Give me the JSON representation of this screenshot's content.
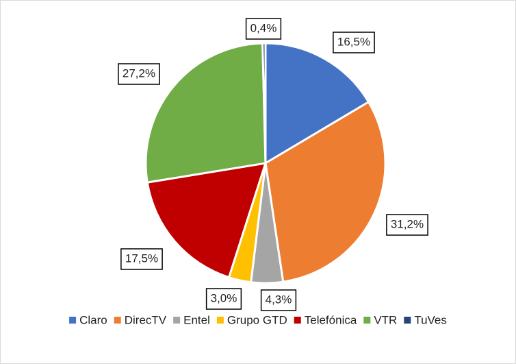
{
  "chart_data": {
    "type": "pie",
    "categories": [
      "Claro",
      "DirecTV",
      "Entel",
      "Grupo GTD",
      "Telefónica",
      "VTR",
      "TuVes"
    ],
    "values": [
      16.5,
      31.2,
      4.3,
      3.0,
      17.5,
      27.2,
      0.4
    ],
    "value_labels": [
      "16,5%",
      "31,2%",
      "4,3%",
      "3,0%",
      "17,5%",
      "27,2%",
      "0,4%"
    ],
    "colors": [
      "#4472c4",
      "#ed7d31",
      "#a5a5a5",
      "#ffc000",
      "#c00000",
      "#70ad47",
      "#264478"
    ],
    "legend": "bottom"
  }
}
